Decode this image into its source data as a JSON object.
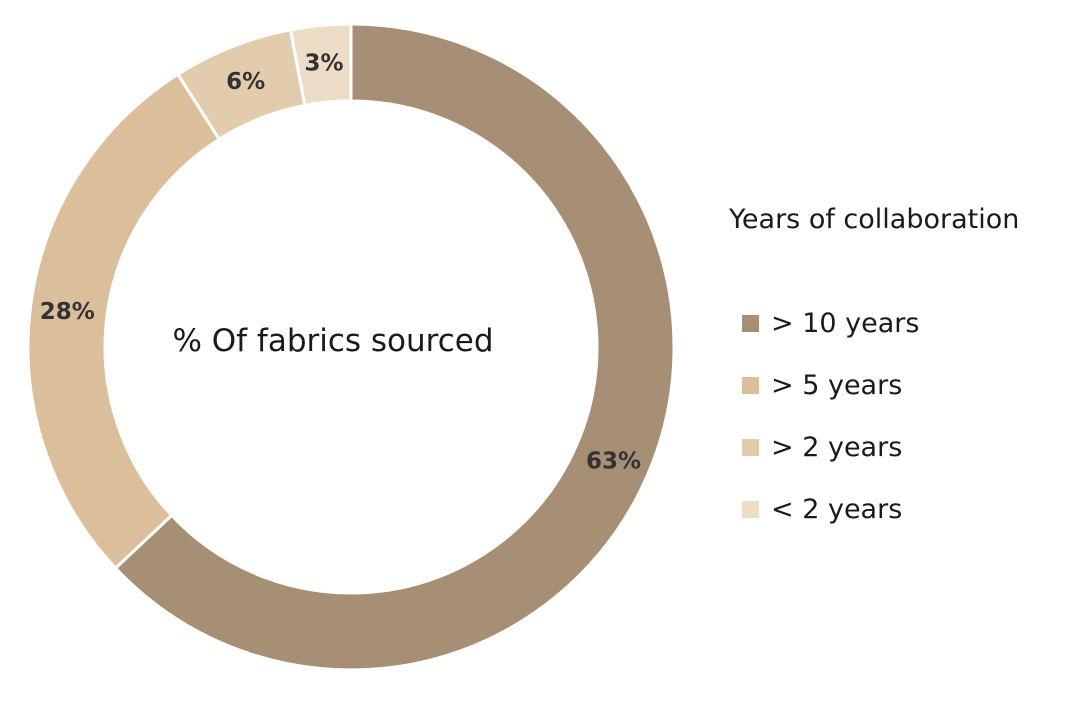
{
  "chart_data": {
    "type": "pie",
    "donut": true,
    "center_text": "% Of fabrics sourced",
    "legend_title": "Years of collaboration",
    "legend_position": "right",
    "categories": [
      "> 10 years",
      "> 5 years",
      "> 2 years",
      "< 2 years"
    ],
    "values": [
      63,
      28,
      6,
      3
    ],
    "value_labels": [
      "63%",
      "28%",
      "6%",
      "3%"
    ],
    "colors": [
      "#a68f74",
      "#dbbf9a",
      "#e3ccae",
      "#eddcc6"
    ]
  }
}
